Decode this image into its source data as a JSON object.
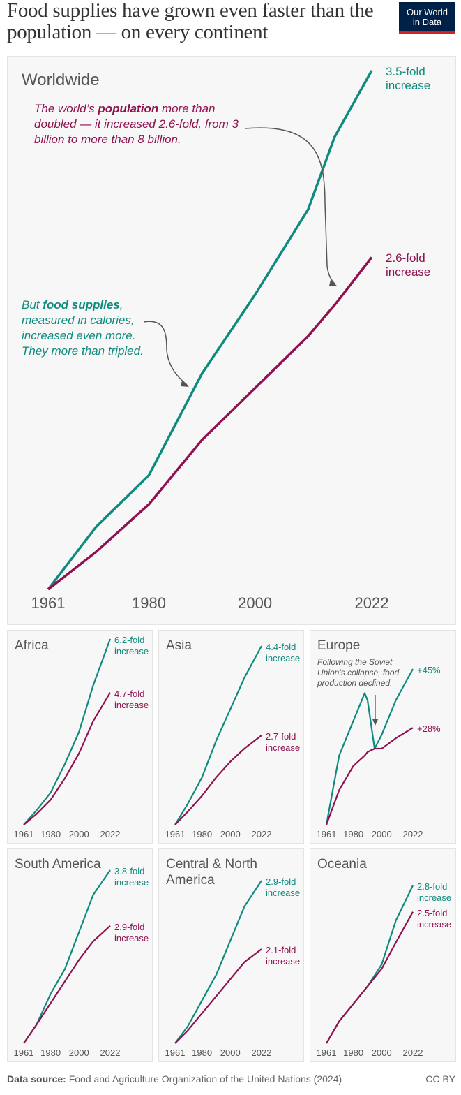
{
  "title": "Food supplies have grown even faster than the population — on every continent",
  "logo": {
    "line1": "Our World",
    "line2": "in Data"
  },
  "colors": {
    "food": "#0e8a7e",
    "population": "#8f1150"
  },
  "chart_data": [
    {
      "type": "line",
      "title": "Worldwide",
      "xticks": [
        "1961",
        "1980",
        "2000",
        "2022"
      ],
      "x": [
        1961,
        1970,
        1980,
        1990,
        2000,
        2010,
        2015,
        2022
      ],
      "series": [
        {
          "key": "food",
          "label": "3.5-fold\nincrease",
          "values": [
            1,
            1.3,
            1.55,
            2.04,
            2.42,
            2.83,
            3.18,
            3.5
          ]
        },
        {
          "key": "population",
          "label": "2.6-fold\nincrease",
          "values": [
            1,
            1.18,
            1.41,
            1.72,
            1.97,
            2.22,
            2.37,
            2.6
          ]
        }
      ],
      "annotations": {
        "population_pre": "The world’s ",
        "population_bold": "population",
        "population_post": " more than doubled — it increased 2.6-fold, from 3 billion to more than 8 billion.",
        "food_pre": "But ",
        "food_bold": "food supplies",
        "food_post": ", measured in calories, increased even more. They more than tripled."
      }
    },
    {
      "type": "line",
      "title": "Africa",
      "xticks": [
        "1961",
        "1980",
        "2000",
        "2022"
      ],
      "x": [
        1961,
        1970,
        1980,
        1990,
        2000,
        2010,
        2022
      ],
      "series": [
        {
          "key": "food",
          "label": "6.2-fold\nincrease",
          "values": [
            1,
            1.4,
            1.9,
            2.7,
            3.6,
            4.9,
            6.2
          ]
        },
        {
          "key": "population",
          "label": "4.7-fold\nincrease",
          "values": [
            1,
            1.3,
            1.7,
            2.3,
            3.0,
            3.9,
            4.7
          ]
        }
      ]
    },
    {
      "type": "line",
      "title": "Asia",
      "xticks": [
        "1961",
        "1980",
        "2000",
        "2022"
      ],
      "x": [
        1961,
        1970,
        1980,
        1990,
        2000,
        2010,
        2022
      ],
      "series": [
        {
          "key": "food",
          "label": "4.4-fold\nincrease",
          "values": [
            1,
            1.4,
            1.9,
            2.6,
            3.2,
            3.8,
            4.4
          ]
        },
        {
          "key": "population",
          "label": "2.7-fold\nincrease",
          "values": [
            1,
            1.25,
            1.55,
            1.9,
            2.2,
            2.45,
            2.7
          ]
        }
      ]
    },
    {
      "type": "line",
      "title": "Europe",
      "xticks": [
        "1961",
        "1980",
        "2000",
        "2022"
      ],
      "x": [
        1961,
        1970,
        1980,
        1988,
        1990,
        1995,
        2000,
        2010,
        2022
      ],
      "series": [
        {
          "key": "food",
          "label": "+45%",
          "values": [
            1,
            1.2,
            1.3,
            1.38,
            1.36,
            1.22,
            1.26,
            1.36,
            1.45
          ]
        },
        {
          "key": "population",
          "label": "+28%",
          "values": [
            1,
            1.1,
            1.17,
            1.2,
            1.21,
            1.22,
            1.22,
            1.25,
            1.28
          ]
        }
      ],
      "annotation": "Following the Soviet Union’s collapse, food production declined."
    },
    {
      "type": "line",
      "title": "South America",
      "xticks": [
        "1961",
        "1980",
        "2000",
        "2022"
      ],
      "x": [
        1961,
        1970,
        1980,
        1990,
        2000,
        2010,
        2022
      ],
      "series": [
        {
          "key": "food",
          "label": "3.8-fold\nincrease",
          "values": [
            1,
            1.3,
            1.8,
            2.2,
            2.8,
            3.4,
            3.8
          ]
        },
        {
          "key": "population",
          "label": "2.9-fold\nincrease",
          "values": [
            1,
            1.3,
            1.65,
            2.0,
            2.35,
            2.65,
            2.9
          ]
        }
      ]
    },
    {
      "type": "line",
      "title": "Central & North America",
      "xticks": [
        "1961",
        "1980",
        "2000",
        "2022"
      ],
      "x": [
        1961,
        1970,
        1980,
        1990,
        2000,
        2010,
        2022
      ],
      "series": [
        {
          "key": "food",
          "label": "2.9-fold\nincrease",
          "values": [
            1,
            1.2,
            1.5,
            1.8,
            2.2,
            2.6,
            2.9
          ]
        },
        {
          "key": "population",
          "label": "2.1-fold\nincrease",
          "values": [
            1,
            1.15,
            1.35,
            1.55,
            1.75,
            1.95,
            2.1
          ]
        }
      ]
    },
    {
      "type": "line",
      "title": "Oceania",
      "xticks": [
        "1961",
        "1980",
        "2000",
        "2022"
      ],
      "x": [
        1961,
        1970,
        1980,
        1990,
        2000,
        2010,
        2022
      ],
      "series": [
        {
          "key": "food",
          "label": "2.8-fold\nincrease",
          "values": [
            1,
            1.25,
            1.45,
            1.65,
            1.9,
            2.4,
            2.8
          ]
        },
        {
          "key": "population",
          "label": "2.5-fold\nincrease",
          "values": [
            1,
            1.25,
            1.45,
            1.65,
            1.85,
            2.15,
            2.5
          ]
        }
      ]
    }
  ],
  "footer": {
    "label": "Data source:",
    "text": " Food and Agriculture Organization of the United Nations (2024)",
    "license": "CC BY"
  }
}
